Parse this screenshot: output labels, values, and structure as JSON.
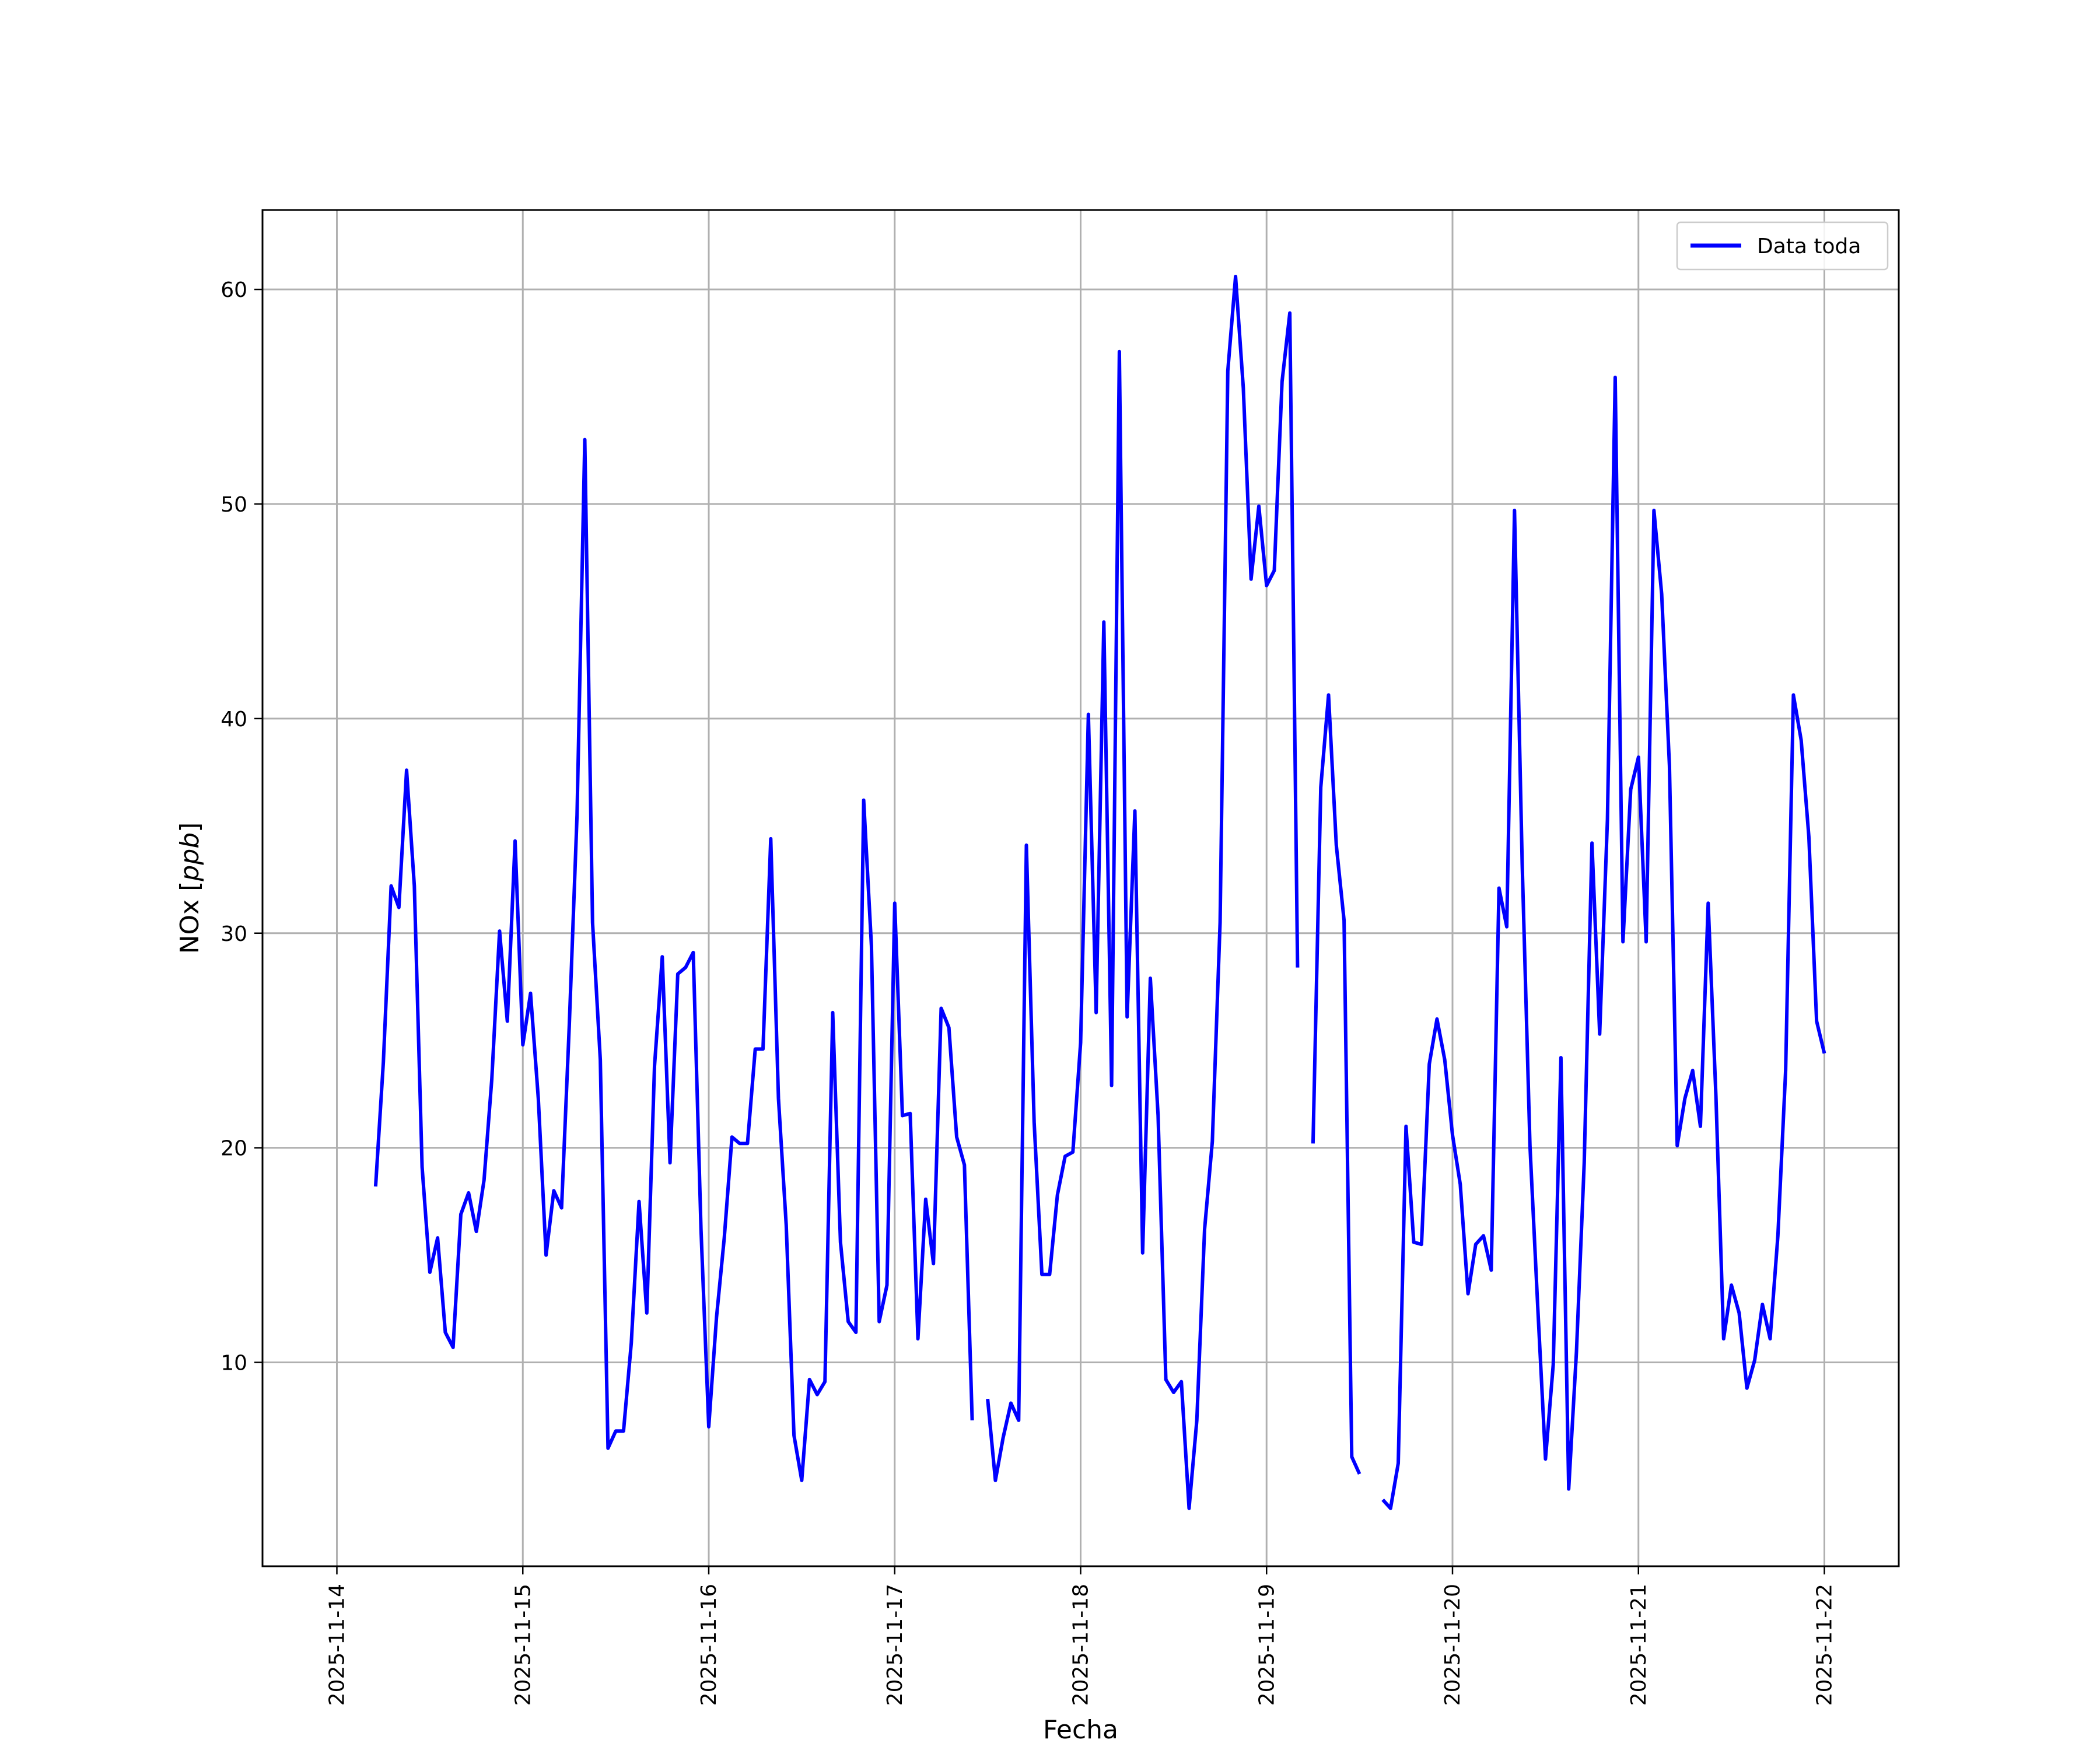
{
  "chart_data": {
    "type": "line",
    "xlabel": "Fecha",
    "ylabel_prefix": "NOx [",
    "ylabel_unit": "ppb",
    "ylabel_suffix": "]",
    "xlim": [
      "2025-11-13T14:24",
      "2025-11-22T09:36"
    ],
    "ylim": [
      0.5,
      63.7
    ],
    "x_ticks": [
      "2025-11-14",
      "2025-11-15",
      "2025-11-16",
      "2025-11-17",
      "2025-11-18",
      "2025-11-19",
      "2025-11-20",
      "2025-11-21",
      "2025-11-22"
    ],
    "y_ticks": [
      10,
      20,
      30,
      40,
      50,
      60
    ],
    "grid": true,
    "legend_position": "top-right",
    "series": [
      {
        "name": "Data toda",
        "color": "#0000ff",
        "points": [
          [
            "2025-11-14T05:00",
            18.2
          ],
          [
            "2025-11-14T06:00",
            24.0
          ],
          [
            "2025-11-14T07:00",
            32.2
          ],
          [
            "2025-11-14T08:00",
            31.2
          ],
          [
            "2025-11-14T09:00",
            37.6
          ],
          [
            "2025-11-14T10:00",
            32.2
          ],
          [
            "2025-11-14T11:00",
            19.1
          ],
          [
            "2025-11-14T12:00",
            14.2
          ],
          [
            "2025-11-14T13:00",
            15.8
          ],
          [
            "2025-11-14T14:00",
            11.4
          ],
          [
            "2025-11-14T15:00",
            10.7
          ],
          [
            "2025-11-14T16:00",
            16.9
          ],
          [
            "2025-11-14T17:00",
            17.9
          ],
          [
            "2025-11-14T18:00",
            16.1
          ],
          [
            "2025-11-14T19:00",
            18.5
          ],
          [
            "2025-11-14T20:00",
            23.2
          ],
          [
            "2025-11-14T21:00",
            30.1
          ],
          [
            "2025-11-14T22:00",
            25.9
          ],
          [
            "2025-11-14T23:00",
            34.3
          ],
          [
            "2025-11-15T00:00",
            24.8
          ],
          [
            "2025-11-15T01:00",
            27.2
          ],
          [
            "2025-11-15T02:00",
            22.3
          ],
          [
            "2025-11-15T03:00",
            15.0
          ],
          [
            "2025-11-15T04:00",
            18.0
          ],
          [
            "2025-11-15T05:00",
            17.2
          ],
          [
            "2025-11-15T06:00",
            25.7
          ],
          [
            "2025-11-15T07:00",
            35.5
          ],
          [
            "2025-11-15T08:00",
            53.0
          ],
          [
            "2025-11-15T09:00",
            30.5
          ],
          [
            "2025-11-15T10:00",
            24.1
          ],
          [
            "2025-11-15T11:00",
            6.0
          ],
          [
            "2025-11-15T12:00",
            6.8
          ],
          [
            "2025-11-15T13:00",
            6.8
          ],
          [
            "2025-11-15T14:00",
            10.9
          ],
          [
            "2025-11-15T15:00",
            17.5
          ],
          [
            "2025-11-15T16:00",
            12.3
          ],
          [
            "2025-11-15T17:00",
            23.8
          ],
          [
            "2025-11-15T18:00",
            28.9
          ],
          [
            "2025-11-15T19:00",
            19.3
          ],
          [
            "2025-11-15T20:00",
            28.1
          ],
          [
            "2025-11-15T21:00",
            28.4
          ],
          [
            "2025-11-15T22:00",
            29.1
          ],
          [
            "2025-11-15T23:00",
            16.2
          ],
          [
            "2025-11-16T00:00",
            7.0
          ],
          [
            "2025-11-16T01:00",
            12.1
          ],
          [
            "2025-11-16T02:00",
            15.8
          ],
          [
            "2025-11-16T03:00",
            20.5
          ],
          [
            "2025-11-16T04:00",
            20.2
          ],
          [
            "2025-11-16T05:00",
            20.2
          ],
          [
            "2025-11-16T06:00",
            24.6
          ],
          [
            "2025-11-16T07:00",
            24.6
          ],
          [
            "2025-11-16T08:00",
            34.4
          ],
          [
            "2025-11-16T09:00",
            22.3
          ],
          [
            "2025-11-16T10:00",
            16.4
          ],
          [
            "2025-11-16T11:00",
            6.6
          ],
          [
            "2025-11-16T12:00",
            4.5
          ],
          [
            "2025-11-16T13:00",
            9.2
          ],
          [
            "2025-11-16T14:00",
            8.5
          ],
          [
            "2025-11-16T15:00",
            9.1
          ],
          [
            "2025-11-16T16:00",
            26.3
          ],
          [
            "2025-11-16T17:00",
            15.6
          ],
          [
            "2025-11-16T18:00",
            11.9
          ],
          [
            "2025-11-16T19:00",
            11.4
          ],
          [
            "2025-11-16T20:00",
            36.2
          ],
          [
            "2025-11-16T21:00",
            29.4
          ],
          [
            "2025-11-16T22:00",
            11.9
          ],
          [
            "2025-11-16T23:00",
            13.6
          ],
          [
            "2025-11-17T00:00",
            31.4
          ],
          [
            "2025-11-17T01:00",
            21.5
          ],
          [
            "2025-11-17T02:00",
            21.6
          ],
          [
            "2025-11-17T03:00",
            11.1
          ],
          [
            "2025-11-17T04:00",
            17.6
          ],
          [
            "2025-11-17T05:00",
            14.6
          ],
          [
            "2025-11-17T06:00",
            26.5
          ],
          [
            "2025-11-17T07:00",
            25.6
          ],
          [
            "2025-11-17T08:00",
            20.5
          ],
          [
            "2025-11-17T09:00",
            19.2
          ],
          [
            "2025-11-17T10:00",
            7.3
          ],
          [
            "2025-11-17T11:00",
            null
          ],
          [
            "2025-11-17T12:00",
            8.3
          ],
          [
            "2025-11-17T13:00",
            4.5
          ],
          [
            "2025-11-17T14:00",
            6.5
          ],
          [
            "2025-11-17T15:00",
            8.1
          ],
          [
            "2025-11-17T16:00",
            7.3
          ],
          [
            "2025-11-17T17:00",
            34.1
          ],
          [
            "2025-11-17T18:00",
            21.2
          ],
          [
            "2025-11-17T19:00",
            14.1
          ],
          [
            "2025-11-17T20:00",
            14.1
          ],
          [
            "2025-11-17T21:00",
            17.8
          ],
          [
            "2025-11-17T22:00",
            19.6
          ],
          [
            "2025-11-17T23:00",
            19.8
          ],
          [
            "2025-11-18T00:00",
            24.9
          ],
          [
            "2025-11-18T01:00",
            40.2
          ],
          [
            "2025-11-18T02:00",
            26.3
          ],
          [
            "2025-11-18T03:00",
            44.5
          ],
          [
            "2025-11-18T04:00",
            22.9
          ],
          [
            "2025-11-18T05:00",
            57.1
          ],
          [
            "2025-11-18T06:00",
            26.1
          ],
          [
            "2025-11-18T07:00",
            35.7
          ],
          [
            "2025-11-18T08:00",
            15.1
          ],
          [
            "2025-11-18T09:00",
            27.9
          ],
          [
            "2025-11-18T10:00",
            21.5
          ],
          [
            "2025-11-18T11:00",
            9.2
          ],
          [
            "2025-11-18T12:00",
            8.6
          ],
          [
            "2025-11-18T13:00",
            9.1
          ],
          [
            "2025-11-18T14:00",
            3.2
          ],
          [
            "2025-11-18T15:00",
            7.3
          ],
          [
            "2025-11-18T16:00",
            16.2
          ],
          [
            "2025-11-18T17:00",
            20.3
          ],
          [
            "2025-11-18T18:00",
            30.5
          ],
          [
            "2025-11-18T19:00",
            56.2
          ],
          [
            "2025-11-18T20:00",
            60.6
          ],
          [
            "2025-11-18T21:00",
            55.4
          ],
          [
            "2025-11-18T22:00",
            46.5
          ],
          [
            "2025-11-18T23:00",
            49.9
          ],
          [
            "2025-11-19T00:00",
            46.2
          ],
          [
            "2025-11-19T01:00",
            46.9
          ],
          [
            "2025-11-19T02:00",
            55.7
          ],
          [
            "2025-11-19T03:00",
            58.9
          ],
          [
            "2025-11-19T04:00",
            28.4
          ],
          [
            "2025-11-19T05:00",
            null
          ],
          [
            "2025-11-19T06:00",
            20.2
          ],
          [
            "2025-11-19T07:00",
            36.8
          ],
          [
            "2025-11-19T08:00",
            41.1
          ],
          [
            "2025-11-19T09:00",
            34.1
          ],
          [
            "2025-11-19T10:00",
            30.6
          ],
          [
            "2025-11-19T11:00",
            5.6
          ],
          [
            "2025-11-19T12:00",
            4.8
          ],
          [
            "2025-11-19T13:00",
            null
          ],
          [
            "2025-11-19T14:00",
            null
          ],
          [
            "2025-11-19T15:00",
            3.6
          ],
          [
            "2025-11-19T16:00",
            3.2
          ],
          [
            "2025-11-19T17:00",
            5.3
          ],
          [
            "2025-11-19T18:00",
            21.0
          ],
          [
            "2025-11-19T19:00",
            15.6
          ],
          [
            "2025-11-19T20:00",
            15.5
          ],
          [
            "2025-11-19T21:00",
            23.9
          ],
          [
            "2025-11-19T22:00",
            26.0
          ],
          [
            "2025-11-19T23:00",
            24.1
          ],
          [
            "2025-11-20T00:00",
            20.6
          ],
          [
            "2025-11-20T01:00",
            18.3
          ],
          [
            "2025-11-20T02:00",
            13.2
          ],
          [
            "2025-11-20T03:00",
            15.5
          ],
          [
            "2025-11-20T04:00",
            15.9
          ],
          [
            "2025-11-20T05:00",
            14.3
          ],
          [
            "2025-11-20T06:00",
            32.1
          ],
          [
            "2025-11-20T07:00",
            30.3
          ],
          [
            "2025-11-20T08:00",
            49.7
          ],
          [
            "2025-11-20T09:00",
            33.2
          ],
          [
            "2025-11-20T10:00",
            20.1
          ],
          [
            "2025-11-20T11:00",
            12.6
          ],
          [
            "2025-11-20T12:00",
            5.5
          ],
          [
            "2025-11-20T13:00",
            9.9
          ],
          [
            "2025-11-20T14:00",
            24.2
          ],
          [
            "2025-11-20T15:00",
            4.1
          ],
          [
            "2025-11-20T16:00",
            10.5
          ],
          [
            "2025-11-20T17:00",
            19.3
          ],
          [
            "2025-11-20T18:00",
            34.2
          ],
          [
            "2025-11-20T19:00",
            25.3
          ],
          [
            "2025-11-20T20:00",
            35.3
          ],
          [
            "2025-11-20T21:00",
            55.9
          ],
          [
            "2025-11-20T22:00",
            29.6
          ],
          [
            "2025-11-20T23:00",
            36.7
          ],
          [
            "2025-11-21T00:00",
            38.2
          ],
          [
            "2025-11-21T01:00",
            29.6
          ],
          [
            "2025-11-21T02:00",
            49.7
          ],
          [
            "2025-11-21T03:00",
            45.8
          ],
          [
            "2025-11-21T04:00",
            37.8
          ],
          [
            "2025-11-21T05:00",
            20.1
          ],
          [
            "2025-11-21T06:00",
            22.3
          ],
          [
            "2025-11-21T07:00",
            23.6
          ],
          [
            "2025-11-21T08:00",
            21.0
          ],
          [
            "2025-11-21T09:00",
            31.4
          ],
          [
            "2025-11-21T10:00",
            22.4
          ],
          [
            "2025-11-21T11:00",
            11.1
          ],
          [
            "2025-11-21T12:00",
            13.6
          ],
          [
            "2025-11-21T13:00",
            12.3
          ],
          [
            "2025-11-21T14:00",
            8.8
          ],
          [
            "2025-11-21T15:00",
            10.1
          ],
          [
            "2025-11-21T16:00",
            12.7
          ],
          [
            "2025-11-21T17:00",
            11.1
          ],
          [
            "2025-11-21T18:00",
            15.9
          ],
          [
            "2025-11-21T19:00",
            23.6
          ],
          [
            "2025-11-21T20:00",
            41.1
          ],
          [
            "2025-11-21T21:00",
            39.0
          ],
          [
            "2025-11-21T22:00",
            34.5
          ],
          [
            "2025-11-21T23:00",
            25.9
          ],
          [
            "2025-11-22T00:00",
            24.4
          ]
        ]
      }
    ]
  }
}
